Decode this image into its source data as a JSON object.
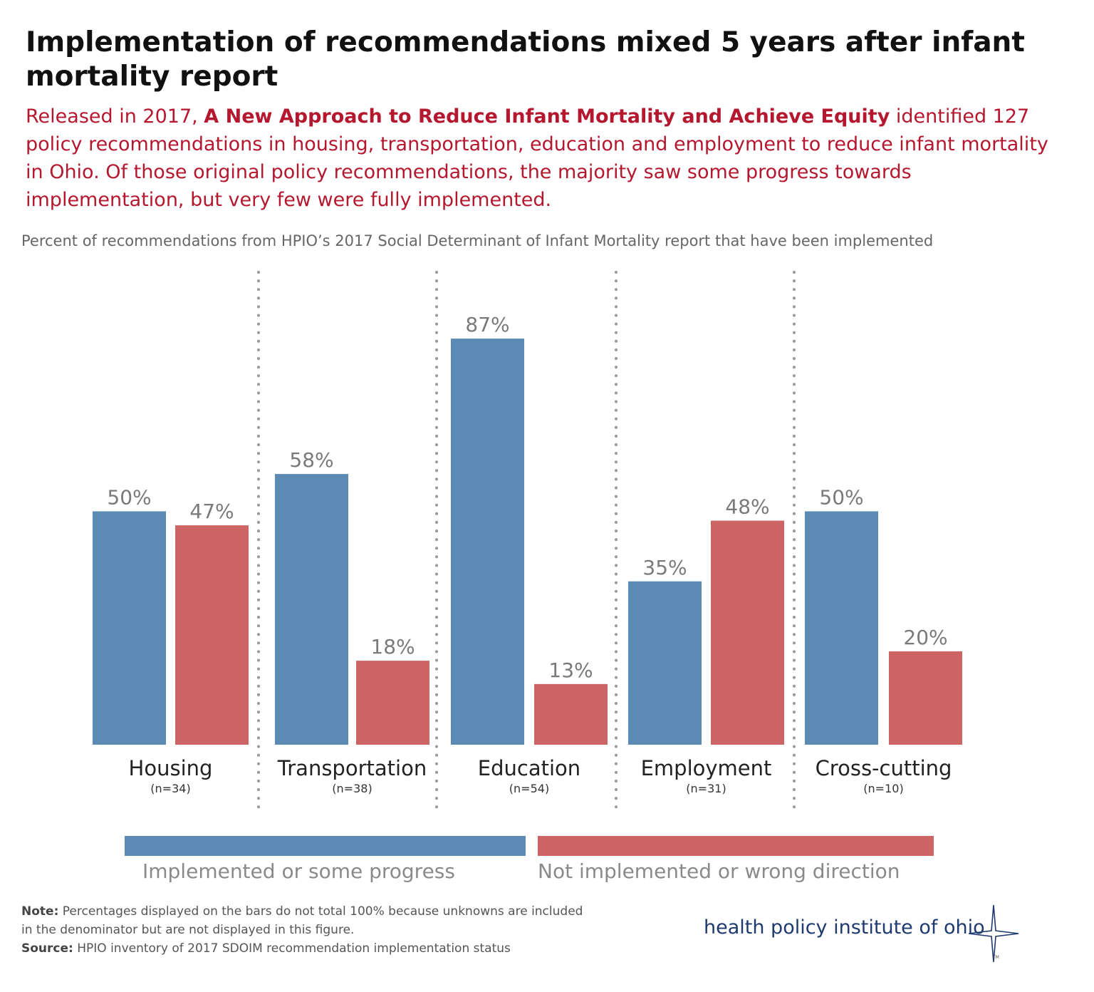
{
  "title": "Implementation of recommendations mixed 5 years after infant mortality report",
  "subtitle": {
    "prefix": "Released in 2017, ",
    "report_name": "A New Approach to Reduce Infant Mortality and Achieve Equity",
    "suffix": " identified 127 policy recommendations in housing, transportation, education and employment to reduce infant mortality in Ohio. Of those original policy recommendations, the majority saw some progress towards implementation, but very few were fully implemented."
  },
  "chart_caption": "Percent of recommendations from HPIO’s 2017 Social Determinant of Infant Mortality report that have been implemented",
  "chart_data": {
    "type": "bar",
    "categories": [
      "Housing",
      "Transportation",
      "Education",
      "Employment",
      "Cross-cutting"
    ],
    "category_counts": [
      "(n=34)",
      "(n=38)",
      "(n=54)",
      "(n=31)",
      "(n=10)"
    ],
    "series": [
      {
        "name": "Implemented or some progress",
        "values": [
          50,
          58,
          87,
          35,
          50
        ],
        "color": "#5b8ab5"
      },
      {
        "name": "Not implemented or wrong direction",
        "values": [
          47,
          18,
          13,
          48,
          20
        ],
        "color": "#cc6564"
      }
    ],
    "data_labels": [
      [
        "50%",
        "58%",
        "87%",
        "35%",
        "50%"
      ],
      [
        "47%",
        "18%",
        "13%",
        "48%",
        "20%"
      ]
    ],
    "ylim": [
      0,
      100
    ],
    "grid": false,
    "legend_placement": "bottom"
  },
  "note": {
    "note_label": "Note:",
    "note_text": " Percentages displayed on the bars do not total 100% because unknowns are included in the denominator but are not displayed in this figure.",
    "source_label": "Source:",
    "source_text": " HPIO inventory of 2017 SDOIM recommendation implementation status"
  },
  "logo": {
    "text": "health policy institute of ohio",
    "tm": "TM",
    "star_color": "#1f3a6e"
  }
}
